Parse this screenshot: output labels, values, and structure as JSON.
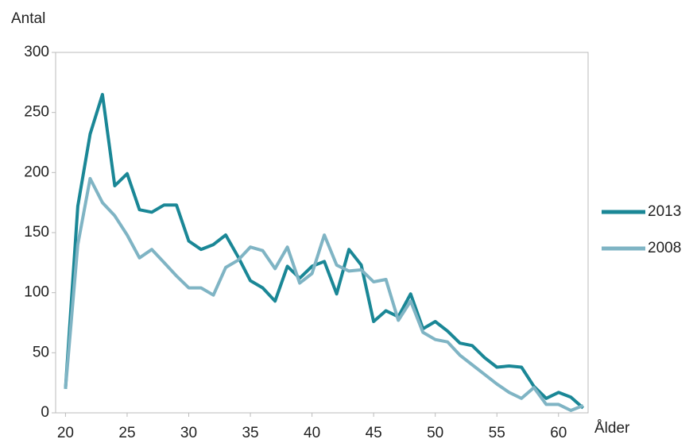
{
  "chart_data": {
    "type": "line",
    "y_label": "Antal",
    "x_label": "Ålder",
    "x": [
      20,
      21,
      22,
      23,
      24,
      25,
      26,
      27,
      28,
      29,
      30,
      31,
      32,
      33,
      34,
      35,
      36,
      37,
      38,
      39,
      40,
      41,
      42,
      43,
      44,
      45,
      46,
      47,
      48,
      49,
      50,
      51,
      52,
      53,
      54,
      55,
      56,
      57,
      58,
      59,
      60,
      61,
      62
    ],
    "series": [
      {
        "name": "2013",
        "color": "#1a8796",
        "values": [
          20,
          172,
          232,
          265,
          189,
          199,
          169,
          167,
          173,
          173,
          143,
          136,
          140,
          148,
          130,
          110,
          104,
          93,
          122,
          112,
          122,
          126,
          99,
          136,
          123,
          76,
          85,
          80,
          99,
          70,
          76,
          68,
          58,
          56,
          46,
          38,
          39,
          38,
          22,
          12,
          17,
          13,
          4
        ]
      },
      {
        "name": "2008",
        "color": "#7fb4c4",
        "values": [
          20,
          140,
          195,
          175,
          164,
          148,
          129,
          136,
          125,
          114,
          104,
          104,
          98,
          121,
          127,
          138,
          135,
          120,
          138,
          108,
          116,
          148,
          123,
          118,
          119,
          109,
          111,
          77,
          93,
          67,
          61,
          59,
          48,
          40,
          32,
          24,
          17,
          12,
          21,
          7,
          7,
          2,
          6
        ]
      }
    ],
    "xlim": [
      19.2,
      62.4
    ],
    "xticks": [
      20,
      25,
      30,
      35,
      40,
      45,
      50,
      55,
      60
    ],
    "ylim": [
      0,
      300
    ],
    "yticks": [
      0,
      50,
      100,
      150,
      200,
      250,
      300
    ],
    "legend": "right"
  }
}
